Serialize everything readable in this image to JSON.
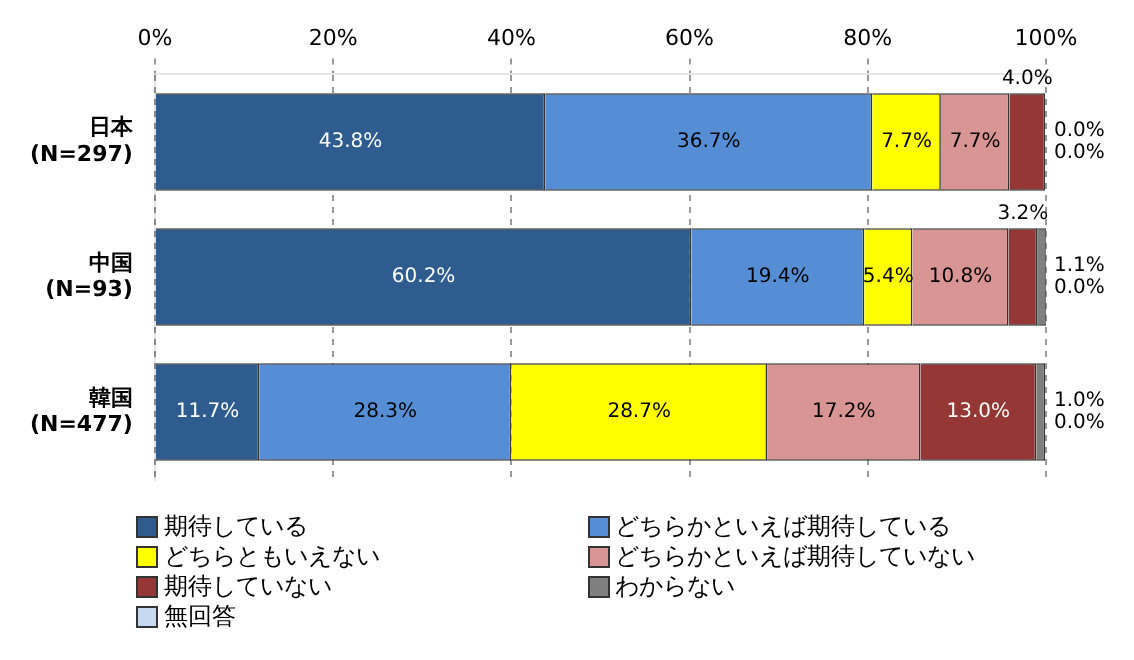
{
  "chart_data": {
    "type": "bar",
    "orientation": "horizontal",
    "stacked": true,
    "categories": [
      "日本\n(N=297)",
      "中国\n(N=93)",
      "韓国\n(N=477)"
    ],
    "series": [
      {
        "name": "期待している",
        "color": "#2f5c8f",
        "values": [
          43.8,
          60.2,
          11.7
        ],
        "value_labels": [
          "43.8%",
          "60.2%",
          "11.7%"
        ]
      },
      {
        "name": "どちらかといえば期待している",
        "color": "#558ed5",
        "values": [
          36.7,
          19.4,
          28.3
        ],
        "value_labels": [
          "36.7%",
          "19.4%",
          "28.3%"
        ]
      },
      {
        "name": "どちらともいえない",
        "color": "#ffff00",
        "values": [
          7.7,
          5.4,
          28.7
        ],
        "value_labels": [
          "7.7%",
          "5.4%",
          "28.7%"
        ]
      },
      {
        "name": "どちらかといえば期待していない",
        "color": "#d99594",
        "values": [
          7.7,
          10.8,
          17.2
        ],
        "value_labels": [
          "7.7%",
          "10.8%",
          "17.2%"
        ]
      },
      {
        "name": "期待していない",
        "color": "#953735",
        "values": [
          4.0,
          3.2,
          13.0
        ],
        "value_labels": [
          "4.0%",
          "3.2%",
          "13.0%"
        ]
      },
      {
        "name": "わからない",
        "color": "#7f7f7f",
        "values": [
          0.0,
          1.1,
          1.0
        ],
        "value_labels": [
          "0.0%",
          "1.1%",
          "1.0%"
        ]
      },
      {
        "name": "無回答",
        "color": "#c6d9f1",
        "values": [
          0.0,
          0.0,
          0.0
        ],
        "value_labels": [
          "0.0%",
          "0.0%",
          "0.0%"
        ]
      }
    ],
    "xlim": [
      0,
      100
    ],
    "xticks": [
      {
        "value": 0,
        "label": "0%"
      },
      {
        "value": 20,
        "label": "20%"
      },
      {
        "value": 40,
        "label": "40%"
      },
      {
        "value": 60,
        "label": "60%"
      },
      {
        "value": 80,
        "label": "80%"
      },
      {
        "value": 100,
        "label": "100%"
      }
    ],
    "grid": "x",
    "legend": "bottom"
  }
}
